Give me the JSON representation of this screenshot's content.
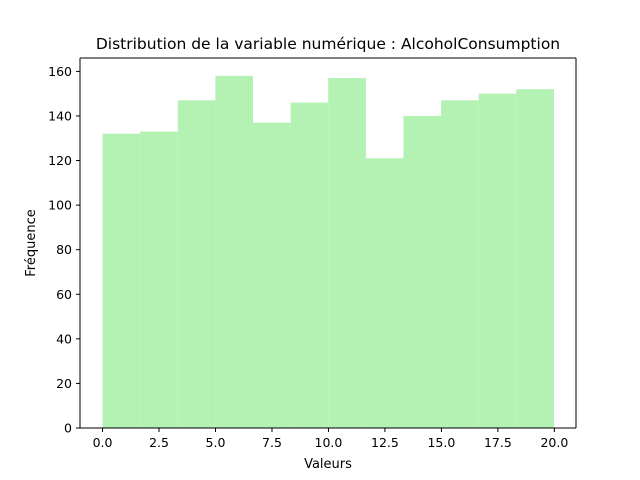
{
  "chart_data": {
    "type": "bar",
    "title": "Distribution de la variable numérique : AlcoholConsumption",
    "xlabel": "Valeurs",
    "ylabel": "Fréquence",
    "xlim": [
      -0.998,
      20.957
    ],
    "ylim": [
      0,
      166
    ],
    "bin_edges": [
      0.0,
      1.665,
      3.33,
      4.995,
      6.66,
      8.325,
      9.99,
      11.655,
      13.32,
      14.985,
      16.65,
      18.315,
      19.98
    ],
    "values": [
      132,
      133,
      147,
      158,
      137,
      146,
      157,
      121,
      140,
      147,
      150,
      152
    ],
    "bar_color": "#b3f2b3",
    "xticks": [
      0.0,
      2.5,
      5.0,
      7.5,
      10.0,
      12.5,
      15.0,
      17.5,
      20.0
    ],
    "xtick_labels": [
      "0.0",
      "2.5",
      "5.0",
      "7.5",
      "10.0",
      "12.5",
      "15.0",
      "17.5",
      "20.0"
    ],
    "yticks": [
      0,
      20,
      40,
      60,
      80,
      100,
      120,
      140,
      160
    ],
    "ytick_labels": [
      "0",
      "20",
      "40",
      "60",
      "80",
      "100",
      "120",
      "140",
      "160"
    ]
  }
}
